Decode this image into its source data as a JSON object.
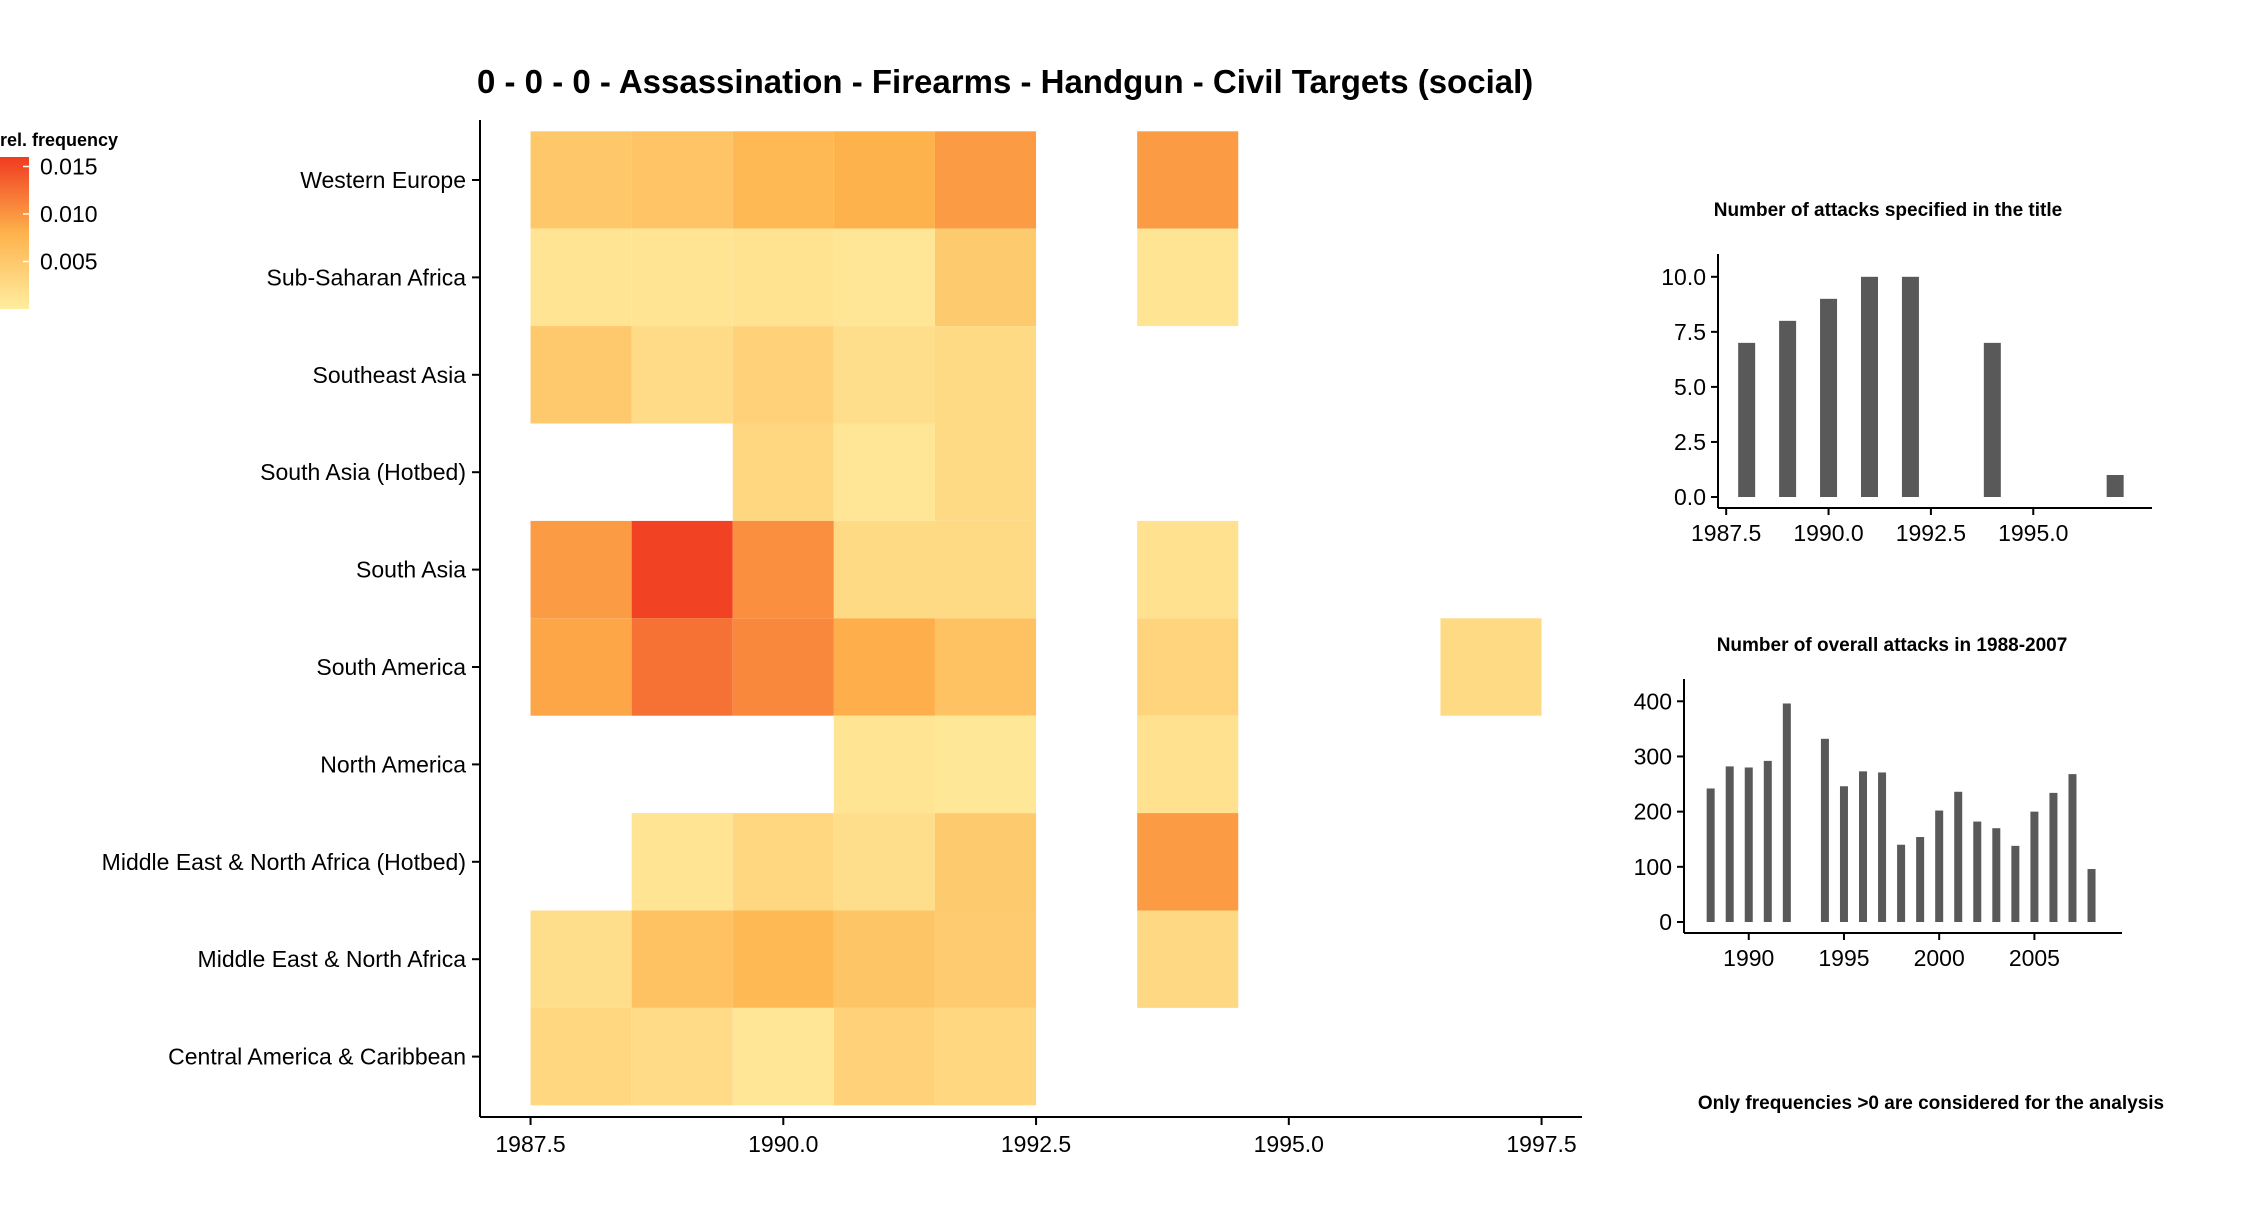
{
  "title": "0 - 0 - 0 - Assassination - Firearms - Handgun - Civil Targets (social)",
  "note": "Only frequencies >0 are considered for the analysis",
  "colors": {
    "low": "#FFEDA0",
    "mid": "#FEB24C",
    "high": "#F03B20",
    "bar": "#595959"
  },
  "chart_data": [
    {
      "type": "heatmap",
      "title": "0 - 0 - 0 - Assassination - Firearms - Handgun - Civil Targets (social)",
      "xlabel": "",
      "ylabel": "",
      "x": [
        1988,
        1989,
        1990,
        1991,
        1992,
        1994,
        1997
      ],
      "x_range": [
        1987.0,
        1997.9
      ],
      "x_ticks": [
        1987.5,
        1990.0,
        1992.5,
        1995.0,
        1997.5
      ],
      "x_tick_labels": [
        "1987.5",
        "1990.0",
        "1992.5",
        "1995.0",
        "1997.5"
      ],
      "y_categories": [
        "Central America & Caribbean",
        "Middle East & North Africa",
        "Middle East & North Africa (Hotbed)",
        "North America",
        "South America",
        "South Asia",
        "South Asia (Hotbed)",
        "Southeast Asia",
        "Sub-Saharan Africa",
        "Western Europe"
      ],
      "value_range": [
        0,
        0.016
      ],
      "legend": {
        "title": "rel. frequency",
        "ticks": [
          0.005,
          0.01,
          0.015
        ],
        "tick_labels": [
          "0.005",
          "0.010",
          "0.015"
        ],
        "position": "top-left"
      },
      "cells": [
        {
          "x": 1988,
          "y": "Western Europe",
          "value": 0.0052
        },
        {
          "x": 1989,
          "y": "Western Europe",
          "value": 0.0056
        },
        {
          "x": 1990,
          "y": "Western Europe",
          "value": 0.0072
        },
        {
          "x": 1991,
          "y": "Western Europe",
          "value": 0.008
        },
        {
          "x": 1992,
          "y": "Western Europe",
          "value": 0.0095
        },
        {
          "x": 1994,
          "y": "Western Europe",
          "value": 0.0095
        },
        {
          "x": 1988,
          "y": "Sub-Saharan Africa",
          "value": 0.0012
        },
        {
          "x": 1989,
          "y": "Sub-Saharan Africa",
          "value": 0.0012
        },
        {
          "x": 1990,
          "y": "Sub-Saharan Africa",
          "value": 0.0014
        },
        {
          "x": 1991,
          "y": "Sub-Saharan Africa",
          "value": 0.001
        },
        {
          "x": 1992,
          "y": "Sub-Saharan Africa",
          "value": 0.0048
        },
        {
          "x": 1994,
          "y": "Sub-Saharan Africa",
          "value": 0.0012
        },
        {
          "x": 1988,
          "y": "Southeast Asia",
          "value": 0.005
        },
        {
          "x": 1989,
          "y": "Southeast Asia",
          "value": 0.0024
        },
        {
          "x": 1990,
          "y": "Southeast Asia",
          "value": 0.0036
        },
        {
          "x": 1991,
          "y": "Southeast Asia",
          "value": 0.002
        },
        {
          "x": 1992,
          "y": "Southeast Asia",
          "value": 0.0026
        },
        {
          "x": 1990,
          "y": "South Asia (Hotbed)",
          "value": 0.003
        },
        {
          "x": 1991,
          "y": "South Asia (Hotbed)",
          "value": 0.001
        },
        {
          "x": 1992,
          "y": "South Asia (Hotbed)",
          "value": 0.0026
        },
        {
          "x": 1988,
          "y": "South Asia",
          "value": 0.0095
        },
        {
          "x": 1989,
          "y": "South Asia",
          "value": 0.0155
        },
        {
          "x": 1990,
          "y": "South Asia",
          "value": 0.0103
        },
        {
          "x": 1991,
          "y": "South Asia",
          "value": 0.0026
        },
        {
          "x": 1992,
          "y": "South Asia",
          "value": 0.0026
        },
        {
          "x": 1994,
          "y": "South Asia",
          "value": 0.0016
        },
        {
          "x": 1988,
          "y": "South America",
          "value": 0.0088
        },
        {
          "x": 1989,
          "y": "South America",
          "value": 0.0123
        },
        {
          "x": 1990,
          "y": "South America",
          "value": 0.0108
        },
        {
          "x": 1991,
          "y": "South America",
          "value": 0.0082
        },
        {
          "x": 1992,
          "y": "South America",
          "value": 0.0058
        },
        {
          "x": 1994,
          "y": "South America",
          "value": 0.0034
        },
        {
          "x": 1997,
          "y": "South America",
          "value": 0.0026
        },
        {
          "x": 1991,
          "y": "North America",
          "value": 0.0012
        },
        {
          "x": 1992,
          "y": "North America",
          "value": 0.0008
        },
        {
          "x": 1994,
          "y": "North America",
          "value": 0.0016
        },
        {
          "x": 1989,
          "y": "Middle East & North Africa (Hotbed)",
          "value": 0.0012
        },
        {
          "x": 1990,
          "y": "Middle East & North Africa (Hotbed)",
          "value": 0.003
        },
        {
          "x": 1991,
          "y": "Middle East & North Africa (Hotbed)",
          "value": 0.002
        },
        {
          "x": 1992,
          "y": "Middle East & North Africa (Hotbed)",
          "value": 0.0048
        },
        {
          "x": 1994,
          "y": "Middle East & North Africa (Hotbed)",
          "value": 0.0095
        },
        {
          "x": 1988,
          "y": "Middle East & North Africa",
          "value": 0.002
        },
        {
          "x": 1989,
          "y": "Middle East & North Africa",
          "value": 0.0058
        },
        {
          "x": 1990,
          "y": "Middle East & North Africa",
          "value": 0.0072
        },
        {
          "x": 1991,
          "y": "Middle East & North Africa",
          "value": 0.0054
        },
        {
          "x": 1992,
          "y": "Middle East & North Africa",
          "value": 0.0046
        },
        {
          "x": 1994,
          "y": "Middle East & North Africa",
          "value": 0.0028
        },
        {
          "x": 1988,
          "y": "Central America & Caribbean",
          "value": 0.003
        },
        {
          "x": 1989,
          "y": "Central America & Caribbean",
          "value": 0.0024
        },
        {
          "x": 1990,
          "y": "Central America & Caribbean",
          "value": 0.001
        },
        {
          "x": 1991,
          "y": "Central America & Caribbean",
          "value": 0.0036
        },
        {
          "x": 1992,
          "y": "Central America & Caribbean",
          "value": 0.003
        }
      ]
    },
    {
      "type": "bar",
      "title": "Number of attacks specified in the title",
      "xlabel": "",
      "ylabel": "",
      "x": [
        1988,
        1989,
        1990,
        1991,
        1992,
        1994,
        1997
      ],
      "values": [
        7,
        8,
        9,
        10,
        10,
        7,
        1
      ],
      "xlim": [
        1987.3,
        1997.9
      ],
      "ylim": [
        0,
        10.4
      ],
      "x_ticks": [
        1987.5,
        1990.0,
        1992.5,
        1995.0
      ],
      "x_tick_labels": [
        "1987.5",
        "1990.0",
        "1992.5",
        "1995.0"
      ],
      "y_ticks": [
        0,
        2.5,
        5.0,
        7.5,
        10.0
      ],
      "y_tick_labels": [
        "0.0",
        "2.5",
        "5.0",
        "7.5",
        "10.0"
      ]
    },
    {
      "type": "bar",
      "title": "Number of overall attacks in 1988-2007",
      "xlabel": "",
      "ylabel": "",
      "x": [
        1988,
        1989,
        1990,
        1991,
        1992,
        1994,
        1995,
        1996,
        1997,
        1998,
        1999,
        2000,
        2001,
        2002,
        2003,
        2004,
        2005,
        2006,
        2007,
        2008
      ],
      "values": [
        242,
        282,
        280,
        292,
        396,
        332,
        246,
        273,
        271,
        140,
        154,
        202,
        236,
        182,
        170,
        138,
        200,
        234,
        268,
        96
      ],
      "xlim": [
        1986.6,
        2009.6
      ],
      "ylim": [
        0,
        415
      ],
      "x_ticks": [
        1990,
        1995,
        2000,
        2005
      ],
      "x_tick_labels": [
        "1990",
        "1995",
        "2000",
        "2005"
      ],
      "y_ticks": [
        0,
        100,
        200,
        300,
        400
      ],
      "y_tick_labels": [
        "0",
        "100",
        "200",
        "300",
        "400"
      ]
    }
  ]
}
